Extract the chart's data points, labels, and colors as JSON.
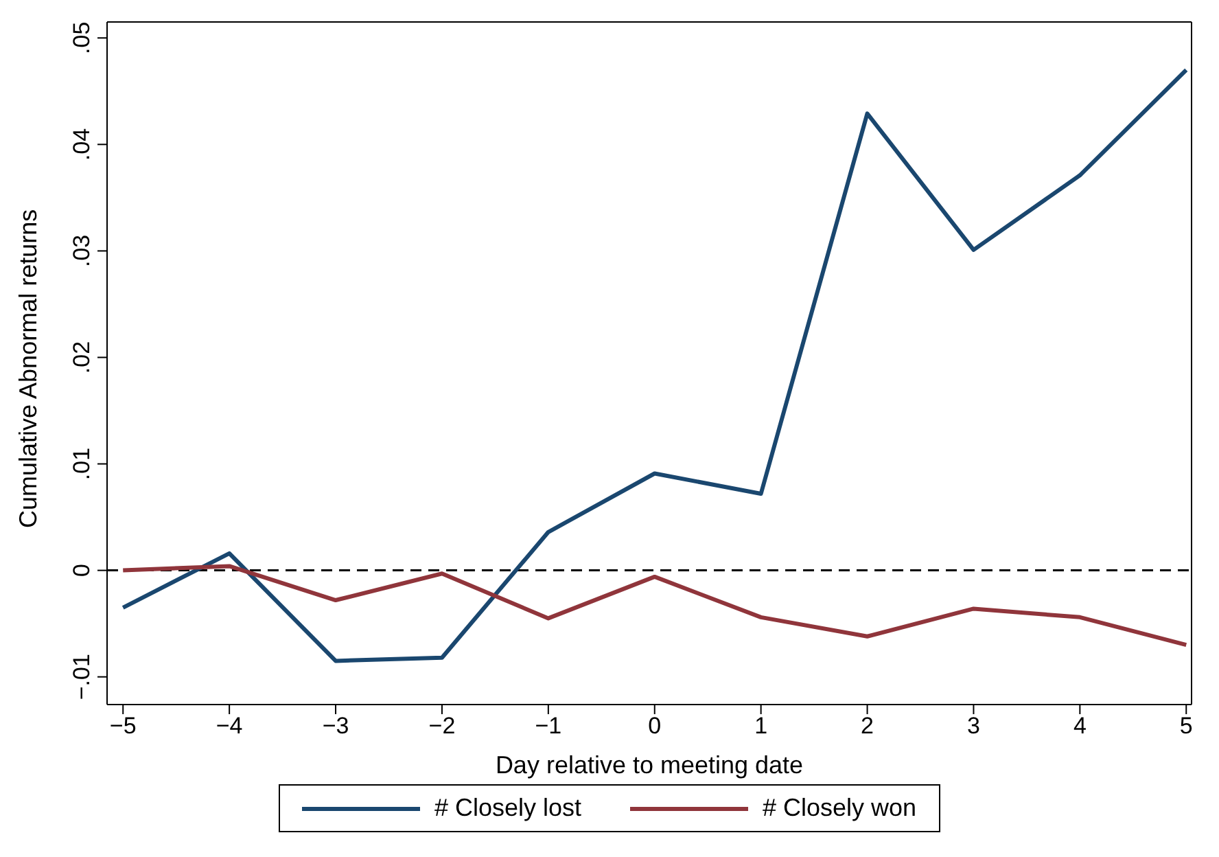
{
  "chart_data": {
    "type": "line",
    "xlabel": "Day relative to meeting date",
    "ylabel": "Cumulative Abnormal returns",
    "x": [
      -5,
      -4,
      -3,
      -2,
      -1,
      0,
      1,
      2,
      3,
      4,
      5
    ],
    "series": [
      {
        "name": "# Closely lost",
        "color": "#1a476f",
        "values": [
          -0.0035,
          0.0016,
          -0.0085,
          -0.0082,
          0.0036,
          0.0091,
          0.0072,
          0.0429,
          0.0301,
          0.0371,
          0.047
        ]
      },
      {
        "name": "# Closely won",
        "color": "#90353b",
        "values": [
          0,
          0.0004,
          -0.0028,
          -0.0003,
          -0.0045,
          -0.0006,
          -0.0044,
          -0.0062,
          -0.0036,
          -0.0044,
          -0.007
        ]
      }
    ],
    "xlim": [
      -5.15,
      5.05
    ],
    "xticks": [
      {
        "value": -5,
        "label": "−5"
      },
      {
        "value": -4,
        "label": "−4"
      },
      {
        "value": -3,
        "label": "−3"
      },
      {
        "value": -2,
        "label": "−2"
      },
      {
        "value": -1,
        "label": "−1"
      },
      0,
      1,
      2,
      3,
      4,
      5
    ],
    "ylim": [
      -0.0126,
      0.0515
    ],
    "yticks": [
      {
        "value": -0.01,
        "label": "−.01"
      },
      0,
      {
        "value": 0.01,
        "label": ".01"
      },
      {
        "value": 0.02,
        "label": ".02"
      },
      {
        "value": 0.03,
        "label": ".03"
      },
      {
        "value": 0.04,
        "label": ".04"
      },
      {
        "value": 0.05,
        "label": ".05"
      }
    ],
    "ref_lines": [
      {
        "axis": "y",
        "value": 0,
        "color": "#000000",
        "line_style": "dashed"
      }
    ],
    "legend": "bottom",
    "grid": false,
    "marker": "none",
    "line_style": "solid"
  }
}
